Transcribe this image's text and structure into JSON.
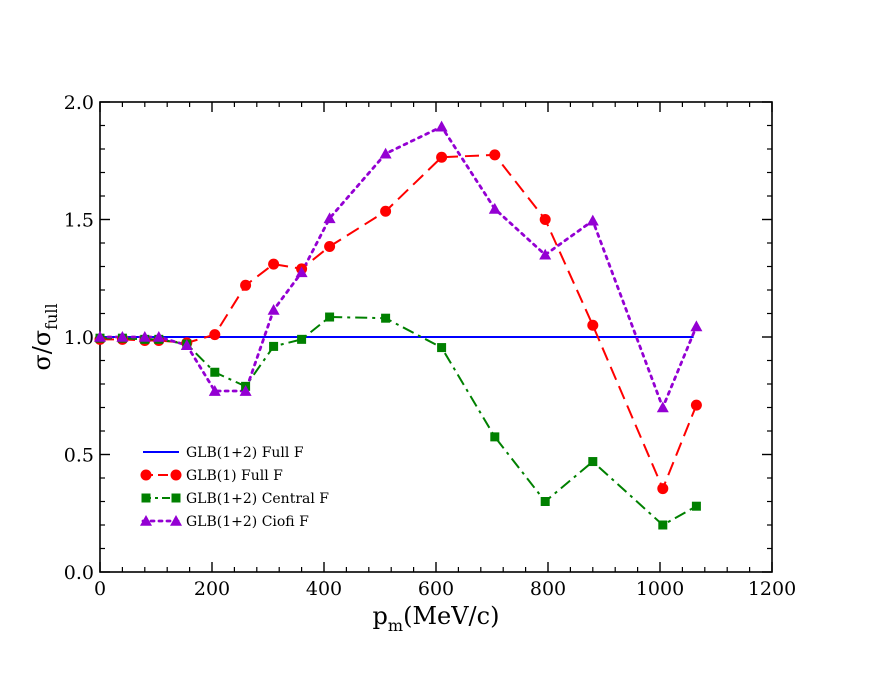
{
  "chart_data": {
    "type": "line",
    "title": "",
    "xlabel": "p_m(MeV/c)",
    "xlabel_main": "p",
    "xlabel_sub": "m",
    "xlabel_rest": "(MeV/c)",
    "ylabel": "σ/σ_full",
    "ylabel_main": "σ/σ",
    "ylabel_sub": "full",
    "xlim": [
      0,
      1200
    ],
    "ylim": [
      0.0,
      2.0
    ],
    "x_ticks": [
      0,
      200,
      400,
      600,
      800,
      1000,
      1200
    ],
    "x_tick_labels": [
      "0",
      "200",
      "400",
      "600",
      "800",
      "1000",
      "1200"
    ],
    "y_ticks": [
      0.0,
      0.5,
      1.0,
      1.5,
      2.0
    ],
    "y_tick_labels": [
      "0.0",
      "0.5",
      "1.0",
      "1.5",
      "2.0"
    ],
    "grid": false,
    "legend_position": "bottom-left",
    "series": [
      {
        "name": "GLB(1+2) Full F",
        "color": "#0000ff",
        "dash": "solid",
        "marker": "none",
        "x": [
          0,
          1060
        ],
        "y": [
          1.0,
          1.0
        ]
      },
      {
        "name": "GLB(1) Full F",
        "color": "#ff0000",
        "dash": "dashed",
        "marker": "circle",
        "x": [
          0,
          40,
          80,
          105,
          155,
          205,
          260,
          310,
          360,
          410,
          510,
          610,
          705,
          795,
          880,
          1005,
          1065
        ],
        "y": [
          0.99,
          0.99,
          0.985,
          0.985,
          0.975,
          1.01,
          1.22,
          1.31,
          1.29,
          1.385,
          1.535,
          1.765,
          1.775,
          1.5,
          1.05,
          0.355,
          0.71
        ]
      },
      {
        "name": "GLB(1+2) Central F",
        "color": "#008000",
        "dash": "dashdot",
        "marker": "square",
        "x": [
          0,
          40,
          80,
          105,
          155,
          205,
          260,
          310,
          360,
          410,
          510,
          610,
          705,
          795,
          880,
          1005,
          1065
        ],
        "y": [
          0.995,
          0.995,
          0.99,
          0.99,
          0.97,
          0.85,
          0.79,
          0.96,
          0.99,
          1.085,
          1.08,
          0.955,
          0.575,
          0.3,
          0.47,
          0.2,
          0.28
        ]
      },
      {
        "name": "GLB(1+2) Ciofi F",
        "color": "#9400d3",
        "dash": "dotted",
        "marker": "triangle",
        "x": [
          0,
          40,
          80,
          105,
          155,
          205,
          260,
          310,
          360,
          410,
          510,
          610,
          705,
          795,
          880,
          1005,
          1065
        ],
        "y": [
          1.0,
          1.0,
          1.0,
          1.0,
          0.965,
          0.77,
          0.77,
          1.115,
          1.275,
          1.505,
          1.78,
          1.895,
          1.545,
          1.35,
          1.495,
          0.7,
          1.045
        ]
      }
    ]
  }
}
